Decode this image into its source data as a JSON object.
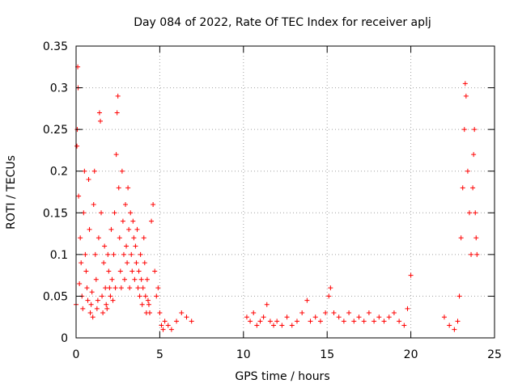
{
  "chart_data": {
    "type": "scatter",
    "title": "Day 084 of 2022, Rate Of TEC Index for receiver aplj",
    "xlabel": "GPS time / hours",
    "ylabel": "ROTI / TECUs",
    "xlim": [
      0,
      25
    ],
    "ylim": [
      0,
      0.35
    ],
    "x_ticks": [
      "0",
      "5",
      "10",
      "15",
      "20",
      "25"
    ],
    "y_ticks": [
      "0",
      "0.05",
      "0.1",
      "0.15",
      "0.2",
      "0.25",
      "0.3",
      "0.35"
    ],
    "grid": true,
    "marker": "+",
    "color": "#ff0000",
    "series": [
      {
        "points": [
          [
            0.0,
            0.04
          ],
          [
            0.05,
            0.23
          ],
          [
            0.07,
            0.25
          ],
          [
            0.1,
            0.325
          ],
          [
            0.12,
            0.3
          ],
          [
            0.15,
            0.17
          ],
          [
            0.2,
            0.065
          ],
          [
            0.25,
            0.12
          ],
          [
            0.3,
            0.09
          ],
          [
            0.35,
            0.05
          ],
          [
            0.4,
            0.035
          ],
          [
            0.45,
            0.15
          ],
          [
            0.5,
            0.2
          ],
          [
            0.55,
            0.1
          ],
          [
            0.6,
            0.08
          ],
          [
            0.65,
            0.06
          ],
          [
            0.7,
            0.045
          ],
          [
            0.75,
            0.19
          ],
          [
            0.8,
            0.13
          ],
          [
            0.85,
            0.03
          ],
          [
            0.9,
            0.04
          ],
          [
            0.95,
            0.055
          ],
          [
            1.0,
            0.025
          ],
          [
            1.05,
            0.16
          ],
          [
            1.1,
            0.2
          ],
          [
            1.15,
            0.1
          ],
          [
            1.2,
            0.07
          ],
          [
            1.25,
            0.035
          ],
          [
            1.3,
            0.045
          ],
          [
            1.35,
            0.12
          ],
          [
            1.4,
            0.27
          ],
          [
            1.45,
            0.26
          ],
          [
            1.5,
            0.15
          ],
          [
            1.55,
            0.05
          ],
          [
            1.6,
            0.03
          ],
          [
            1.65,
            0.09
          ],
          [
            1.7,
            0.11
          ],
          [
            1.75,
            0.06
          ],
          [
            1.8,
            0.04
          ],
          [
            1.85,
            0.035
          ],
          [
            1.9,
            0.1
          ],
          [
            1.95,
            0.08
          ],
          [
            2.0,
            0.06
          ],
          [
            2.05,
            0.05
          ],
          [
            2.1,
            0.13
          ],
          [
            2.15,
            0.07
          ],
          [
            2.2,
            0.045
          ],
          [
            2.25,
            0.1
          ],
          [
            2.3,
            0.15
          ],
          [
            2.35,
            0.06
          ],
          [
            2.4,
            0.22
          ],
          [
            2.45,
            0.27
          ],
          [
            2.5,
            0.29
          ],
          [
            2.55,
            0.18
          ],
          [
            2.6,
            0.12
          ],
          [
            2.65,
            0.08
          ],
          [
            2.7,
            0.06
          ],
          [
            2.75,
            0.2
          ],
          [
            2.8,
            0.14
          ],
          [
            2.85,
            0.1
          ],
          [
            2.9,
            0.07
          ],
          [
            2.95,
            0.16
          ],
          [
            3.0,
            0.11
          ],
          [
            3.05,
            0.09
          ],
          [
            3.1,
            0.18
          ],
          [
            3.15,
            0.13
          ],
          [
            3.2,
            0.06
          ],
          [
            3.25,
            0.15
          ],
          [
            3.3,
            0.1
          ],
          [
            3.35,
            0.08
          ],
          [
            3.4,
            0.14
          ],
          [
            3.45,
            0.12
          ],
          [
            3.5,
            0.07
          ],
          [
            3.55,
            0.11
          ],
          [
            3.6,
            0.09
          ],
          [
            3.65,
            0.13
          ],
          [
            3.7,
            0.06
          ],
          [
            3.75,
            0.08
          ],
          [
            3.8,
            0.05
          ],
          [
            3.85,
            0.1
          ],
          [
            3.9,
            0.07
          ],
          [
            3.95,
            0.04
          ],
          [
            4.0,
            0.06
          ],
          [
            4.05,
            0.12
          ],
          [
            4.1,
            0.09
          ],
          [
            4.15,
            0.05
          ],
          [
            4.2,
            0.03
          ],
          [
            4.25,
            0.07
          ],
          [
            4.3,
            0.045
          ],
          [
            4.35,
            0.04
          ],
          [
            4.4,
            0.03
          ],
          [
            4.5,
            0.14
          ],
          [
            4.6,
            0.16
          ],
          [
            4.7,
            0.08
          ],
          [
            4.8,
            0.05
          ],
          [
            4.9,
            0.06
          ],
          [
            5.0,
            0.03
          ],
          [
            5.1,
            0.015
          ],
          [
            5.2,
            0.01
          ],
          [
            5.3,
            0.02
          ],
          [
            5.5,
            0.015
          ],
          [
            5.7,
            0.01
          ],
          [
            6.0,
            0.02
          ],
          [
            6.3,
            0.03
          ],
          [
            6.6,
            0.025
          ],
          [
            6.9,
            0.02
          ],
          [
            10.2,
            0.025
          ],
          [
            10.4,
            0.02
          ],
          [
            10.6,
            0.03
          ],
          [
            10.8,
            0.015
          ],
          [
            11.0,
            0.02
          ],
          [
            11.2,
            0.025
          ],
          [
            11.4,
            0.04
          ],
          [
            11.6,
            0.02
          ],
          [
            11.8,
            0.015
          ],
          [
            12.0,
            0.02
          ],
          [
            12.3,
            0.015
          ],
          [
            12.6,
            0.025
          ],
          [
            12.9,
            0.015
          ],
          [
            13.2,
            0.02
          ],
          [
            13.5,
            0.03
          ],
          [
            13.8,
            0.045
          ],
          [
            14.0,
            0.02
          ],
          [
            14.3,
            0.025
          ],
          [
            14.6,
            0.02
          ],
          [
            14.9,
            0.03
          ],
          [
            15.1,
            0.05
          ],
          [
            15.2,
            0.06
          ],
          [
            15.4,
            0.03
          ],
          [
            15.7,
            0.025
          ],
          [
            16.0,
            0.02
          ],
          [
            16.3,
            0.03
          ],
          [
            16.6,
            0.02
          ],
          [
            16.9,
            0.025
          ],
          [
            17.2,
            0.02
          ],
          [
            17.5,
            0.03
          ],
          [
            17.8,
            0.02
          ],
          [
            18.1,
            0.025
          ],
          [
            18.4,
            0.02
          ],
          [
            18.7,
            0.025
          ],
          [
            19.0,
            0.03
          ],
          [
            19.3,
            0.02
          ],
          [
            19.6,
            0.015
          ],
          [
            19.8,
            0.035
          ],
          [
            20.0,
            0.075
          ],
          [
            22.0,
            0.025
          ],
          [
            22.3,
            0.015
          ],
          [
            22.6,
            0.01
          ],
          [
            22.8,
            0.02
          ],
          [
            22.9,
            0.05
          ],
          [
            23.0,
            0.12
          ],
          [
            23.1,
            0.18
          ],
          [
            23.2,
            0.25
          ],
          [
            23.25,
            0.305
          ],
          [
            23.3,
            0.29
          ],
          [
            23.4,
            0.2
          ],
          [
            23.5,
            0.15
          ],
          [
            23.6,
            0.1
          ],
          [
            23.7,
            0.18
          ],
          [
            23.75,
            0.22
          ],
          [
            23.8,
            0.25
          ],
          [
            23.85,
            0.15
          ],
          [
            23.9,
            0.12
          ],
          [
            23.95,
            0.1
          ]
        ]
      }
    ]
  }
}
